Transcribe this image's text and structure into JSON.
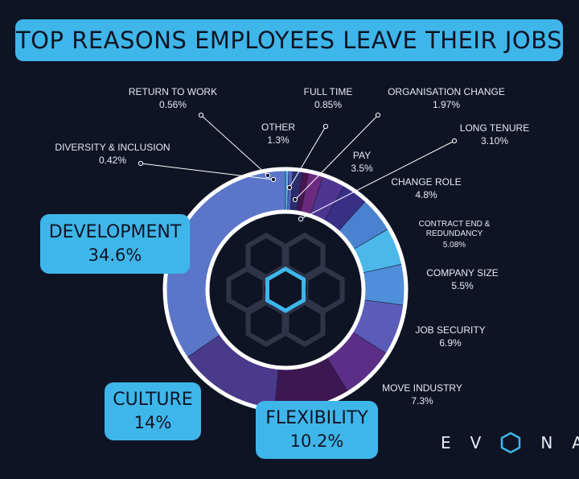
{
  "title": "TOP REASONS EMPLOYEES LEAVE THEIR JOBS",
  "brand": {
    "letters": [
      "E",
      "V",
      "N",
      "A"
    ],
    "colors": {
      "cyan": "#3fb6ea",
      "background": "#0f1424"
    }
  },
  "callouts": {
    "development": {
      "name": "DEVELOPMENT",
      "value": "34.6%"
    },
    "culture": {
      "name": "CULTURE",
      "value": "14%"
    },
    "flexibility": {
      "name": "FLEXIBILITY",
      "value": "10.2%"
    }
  },
  "chart_data": {
    "type": "pie",
    "title": "TOP REASONS EMPLOYEES LEAVE THEIR JOBS",
    "slices": [
      {
        "label": "DEVELOPMENT",
        "value": 34.6,
        "display": "34.6%",
        "color": "#5b76c8"
      },
      {
        "label": "CULTURE",
        "value": 14,
        "display": "14%",
        "color": "#4a3a8c"
      },
      {
        "label": "FLEXIBILITY",
        "value": 10.2,
        "display": "10.2%",
        "color": "#3d1752"
      },
      {
        "label": "MOVE INDUSTRY",
        "value": 7.3,
        "display": "7.3%",
        "color": "#5b2f88"
      },
      {
        "label": "JOB SECURITY",
        "value": 6.9,
        "display": "6.9%",
        "color": "#5a5cb8"
      },
      {
        "label": "COMPANY SIZE",
        "value": 5.5,
        "display": "5.5%",
        "color": "#4f8ed8"
      },
      {
        "label": "CONTRACT END & REDUNDANCY",
        "value": 5.08,
        "display": "5.08%",
        "color": "#4cb8ea"
      },
      {
        "label": "CHANGE ROLE",
        "value": 4.8,
        "display": "4.8%",
        "color": "#4a82cf"
      },
      {
        "label": "PAY",
        "value": 3.5,
        "display": "3.5%",
        "color": "#3a2f86"
      },
      {
        "label": "LONG TENURE",
        "value": 3.1,
        "display": "3.10%",
        "color": "#4e3592"
      },
      {
        "label": "ORGANISATION CHANGE",
        "value": 1.97,
        "display": "1.97%",
        "color": "#6b2a7e"
      },
      {
        "label": "FULL TIME",
        "value": 0.85,
        "display": "0.85%",
        "color": "#4a1450"
      },
      {
        "label": "OTHER",
        "value": 1.3,
        "display": "1.3%",
        "color": "#2c2d6c"
      },
      {
        "label": "RETURN TO WORK",
        "value": 0.56,
        "display": "0.56%",
        "color": "#4f66c0"
      },
      {
        "label": "DIVERSITY & INCLUSION",
        "value": 0.42,
        "display": "0.42%",
        "color": "#4fc0ec"
      }
    ]
  }
}
